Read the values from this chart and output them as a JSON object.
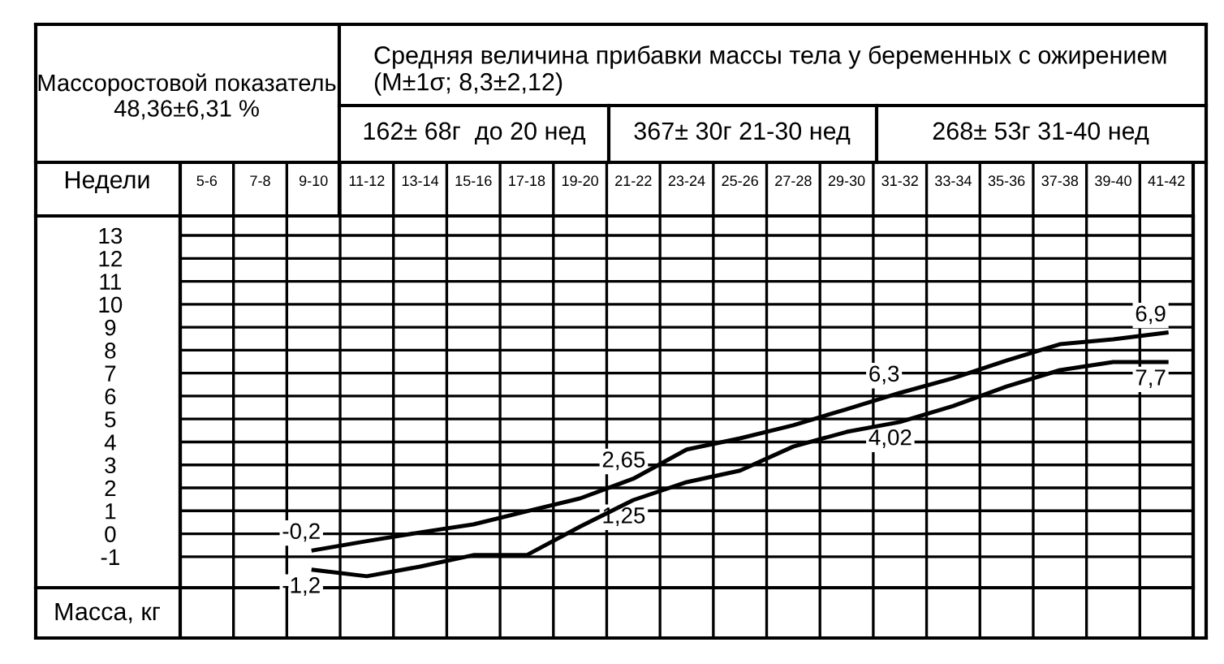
{
  "chart_data": {
    "type": "line",
    "title": "Средняя величина прибавки массы тела у беременных с ожирением (M±1σ; 8,3±2,12)",
    "xlabel": "Недели",
    "ylabel": "Масса, кг",
    "categories": [
      "5-6",
      "7-8",
      "9-10",
      "11-12",
      "13-14",
      "15-16",
      "17-18",
      "19-20",
      "21-22",
      "23-24",
      "25-26",
      "27-28",
      "29-30",
      "31-32",
      "33-34",
      "35-36",
      "37-38",
      "39-40",
      "41-42"
    ],
    "series": [
      {
        "color": "#000000",
        "values": [
          null,
          null,
          -0.72,
          -0.32,
          0.06,
          0.41,
          0.98,
          1.54,
          2.4,
          3.67,
          4.16,
          4.73,
          5.43,
          6.14,
          6.78,
          7.55,
          8.26,
          8.47,
          8.76
        ]
      },
      {
        "color": "#000000",
        "values": [
          null,
          null,
          -1.57,
          -1.85,
          -1.43,
          -0.93,
          -0.93,
          0.31,
          1.47,
          2.25,
          2.75,
          3.8,
          4.44,
          4.87,
          5.57,
          6.42,
          7.13,
          7.48,
          7.48
        ]
      }
    ],
    "ylim": [
      -2.35,
      13.85
    ],
    "yticks": [
      -1,
      0,
      1,
      2,
      3,
      4,
      5,
      6,
      7,
      8,
      9,
      10,
      11,
      12,
      13
    ],
    "grid": true,
    "marker": "none",
    "line_style": "solid",
    "annotations": [
      "Массоростовой показатель 48,36±6,31 %",
      "162± 68г  до 20 нед",
      "367± 30г 21-30 нед",
      "268± 53г 31-40 нед",
      {
        "text": "-0,2",
        "x": "9-10",
        "y": -0.72
      },
      {
        "text": "-1,2",
        "x": "9-10",
        "y": -1.57
      },
      {
        "text": "2,65",
        "x": "21-22",
        "y": 2.4
      },
      {
        "text": "1,25",
        "x": "21-22",
        "y": 1.47
      },
      {
        "text": "6,3",
        "x": "31-32",
        "y": 6.14
      },
      {
        "text": "4,02",
        "x": "31-32",
        "y": 4.87
      },
      {
        "text": "6,9",
        "x": "41-42",
        "y": 8.76
      },
      {
        "text": "7,7",
        "x": "41-42",
        "y": 7.48
      }
    ]
  }
}
